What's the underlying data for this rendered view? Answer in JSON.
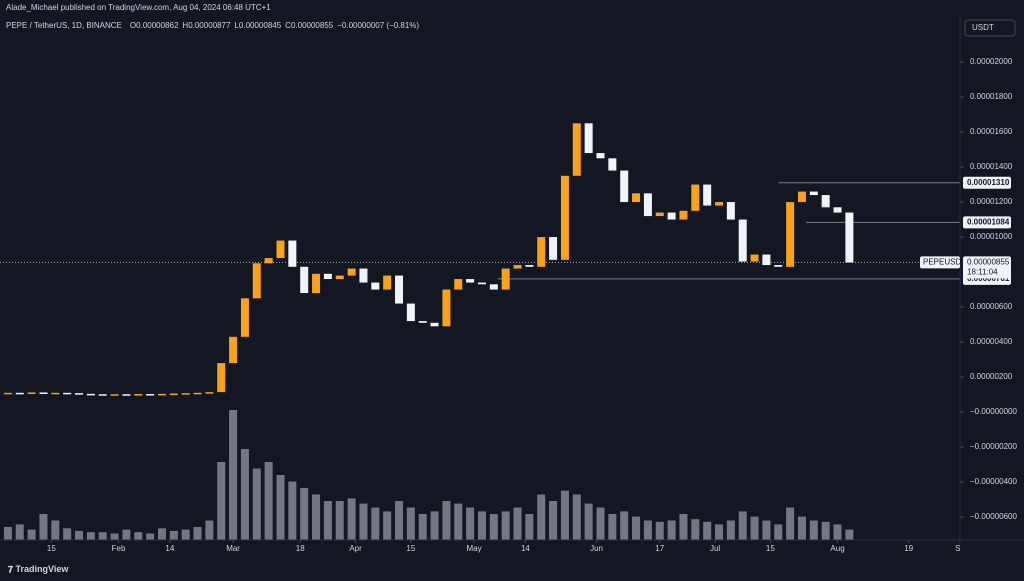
{
  "header": {
    "text": "Alade_Michael published on TradingView.com, Aug 04, 2024 06:48 UTC+1"
  },
  "footer": {
    "brand": "TradingView"
  },
  "chart_data": {
    "type": "candlestick",
    "symbol": "PEPE / TetherUS, 1D, BINANCE",
    "ohlc": [
      {
        "key": "O",
        "value": "0.00000862"
      },
      {
        "key": "H",
        "value": "0.00000877"
      },
      {
        "key": "L",
        "value": "0.00000845"
      },
      {
        "key": "C",
        "value": "0.00000855"
      }
    ],
    "change": "−0.00000007 (−0.81%)",
    "currency": "USDT",
    "up_color": "#f7a21b",
    "down_color": "#f0f3fa",
    "volume_color": "#9598a1",
    "x": [
      "2024-01-04",
      "2024-01-07",
      "2024-01-10",
      "2024-01-13",
      "2024-01-16",
      "2024-01-19",
      "2024-01-22",
      "2024-01-25",
      "2024-01-28",
      "2024-01-31",
      "2024-02-03",
      "2024-02-06",
      "2024-02-09",
      "2024-02-12",
      "2024-02-15",
      "2024-02-18",
      "2024-02-21",
      "2024-02-24",
      "2024-02-27",
      "2024-03-01",
      "2024-03-04",
      "2024-03-07",
      "2024-03-10",
      "2024-03-13",
      "2024-03-16",
      "2024-03-19",
      "2024-03-22",
      "2024-03-25",
      "2024-03-28",
      "2024-03-31",
      "2024-04-03",
      "2024-04-06",
      "2024-04-09",
      "2024-04-12",
      "2024-04-15",
      "2024-04-18",
      "2024-04-21",
      "2024-04-24",
      "2024-04-27",
      "2024-04-30",
      "2024-05-03",
      "2024-05-06",
      "2024-05-09",
      "2024-05-12",
      "2024-05-15",
      "2024-05-18",
      "2024-05-21",
      "2024-05-24",
      "2024-05-27",
      "2024-05-30",
      "2024-06-02",
      "2024-06-05",
      "2024-06-08",
      "2024-06-11",
      "2024-06-14",
      "2024-06-17",
      "2024-06-20",
      "2024-06-23",
      "2024-06-26",
      "2024-06-29",
      "2024-07-02",
      "2024-07-05",
      "2024-07-08",
      "2024-07-11",
      "2024-07-14",
      "2024-07-17",
      "2024-07-20",
      "2024-07-23",
      "2024-07-26",
      "2024-07-29",
      "2024-08-01",
      "2024-08-04"
    ],
    "close": [
      1.1e-06,
      1.08e-06,
      1.12e-06,
      1.06e-06,
      1.1e-06,
      1.08e-06,
      1.04e-06,
      1.02e-06,
      1e-06,
      1.02e-06,
      1.01e-06,
      1.03e-06,
      1e-06,
      1.04e-06,
      1.06e-06,
      1.08e-06,
      1.1e-06,
      1.14e-06,
      2.8e-06,
      4.3e-06,
      6.5e-06,
      8.5e-06,
      8.8e-06,
      9.8e-06,
      8.3e-06,
      6.8e-06,
      7.9e-06,
      7.6e-06,
      7.8e-06,
      8.2e-06,
      7.4e-06,
      7e-06,
      7.8e-06,
      6.2e-06,
      5.2e-06,
      5.1e-06,
      4.9e-06,
      7e-06,
      7.6e-06,
      7.4e-06,
      7.3e-06,
      7e-06,
      8.2e-06,
      8.4e-06,
      8.3e-06,
      1e-05,
      8.7e-06,
      1.35e-05,
      1.65e-05,
      1.48e-05,
      1.45e-05,
      1.38e-05,
      1.2e-05,
      1.25e-05,
      1.12e-05,
      1.14e-05,
      1.1e-05,
      1.15e-05,
      1.3e-05,
      1.18e-05,
      1.2e-05,
      1.1e-05,
      8.6e-06,
      9e-06,
      8.4e-06,
      8.3e-06,
      1.2e-05,
      1.26e-05,
      1.24e-05,
      1.17e-05,
      1.14e-05,
      8.55e-06
    ],
    "volume": [
      10,
      12,
      8,
      20,
      15,
      9,
      7,
      6,
      6,
      5,
      8,
      6,
      5,
      9,
      7,
      8,
      10,
      15,
      60,
      100,
      70,
      55,
      60,
      50,
      45,
      40,
      35,
      30,
      30,
      32,
      28,
      25,
      22,
      30,
      25,
      20,
      22,
      30,
      28,
      25,
      22,
      20,
      22,
      25,
      20,
      35,
      30,
      38,
      35,
      28,
      25,
      20,
      22,
      18,
      15,
      14,
      15,
      20,
      16,
      14,
      12,
      15,
      22,
      18,
      15,
      12,
      25,
      18,
      15,
      14,
      12,
      8
    ],
    "xlim": [
      "2024-01-02",
      "2024-09-01"
    ],
    "xticks": [
      {
        "value": "2024-01-15",
        "label": "15"
      },
      {
        "value": "2024-02-01",
        "label": "Feb"
      },
      {
        "value": "2024-02-14",
        "label": "14"
      },
      {
        "value": "2024-03-01",
        "label": "Mar"
      },
      {
        "value": "2024-03-18",
        "label": "18"
      },
      {
        "value": "2024-04-01",
        "label": "Apr"
      },
      {
        "value": "2024-04-15",
        "label": "15"
      },
      {
        "value": "2024-05-01",
        "label": "May"
      },
      {
        "value": "2024-05-14",
        "label": "14"
      },
      {
        "value": "2024-06-01",
        "label": "Jun"
      },
      {
        "value": "2024-06-17",
        "label": "17"
      },
      {
        "value": "2024-07-01",
        "label": "Jul"
      },
      {
        "value": "2024-07-15",
        "label": "15"
      },
      {
        "value": "2024-08-01",
        "label": "Aug"
      },
      {
        "value": "2024-08-19",
        "label": "19"
      },
      {
        "value": "2024-09-01",
        "label": "Se"
      }
    ],
    "ylim": [
      -7.31e-06,
      2.126e-05
    ],
    "yticks": [
      {
        "value": 2e-05,
        "label": "0.00002000"
      },
      {
        "value": 1.8e-05,
        "label": "0.00001800"
      },
      {
        "value": 1.6e-05,
        "label": "0.00001600"
      },
      {
        "value": 1.4e-05,
        "label": "0.00001400"
      },
      {
        "value": 1.2e-05,
        "label": "0.00001200"
      },
      {
        "value": 1e-05,
        "label": "0.00001000"
      },
      {
        "value": 6e-06,
        "label": "0.00000600"
      },
      {
        "value": 4e-06,
        "label": "0.00000400"
      },
      {
        "value": 2e-06,
        "label": "0.00000200"
      },
      {
        "value": 0,
        "label": "−0.00000000"
      },
      {
        "value": -2e-06,
        "label": "−0.00000200"
      },
      {
        "value": -4e-06,
        "label": "−0.00000400"
      },
      {
        "value": -6e-06,
        "label": "−0.00000600"
      }
    ],
    "levels": [
      {
        "value": 1.31e-05,
        "label": "0.00001310",
        "start": "2024-07-17"
      },
      {
        "value": 1.084e-05,
        "label": "0.00001084",
        "start": "2024-07-24"
      },
      {
        "value": 7.61e-06,
        "label": "0.00000761",
        "start": "2024-05-07"
      }
    ],
    "last": {
      "value": 8.55e-06,
      "label": "0.00000855",
      "ticker": "PEPEUSDT",
      "countdown": "18:11:04"
    },
    "grid": false
  }
}
